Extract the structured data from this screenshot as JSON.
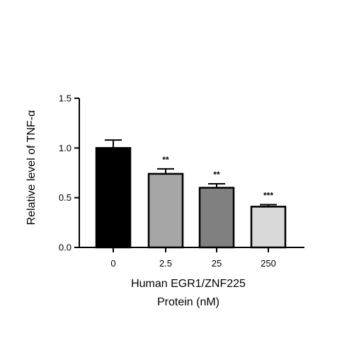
{
  "chart_data": {
    "type": "bar",
    "title": "",
    "xlabel_lines": [
      "Human EGR1/ZNF225",
      "Protein (nM)"
    ],
    "ylabel": "Relative level of TNF-α",
    "categories": [
      "0",
      "2.5",
      "25",
      "250"
    ],
    "values": [
      1.0,
      0.74,
      0.6,
      0.41
    ],
    "errors": [
      0.08,
      0.05,
      0.04,
      0.02
    ],
    "significance": [
      "",
      "**",
      "**",
      "***"
    ],
    "bar_colors": [
      "#000000",
      "#a6a6a6",
      "#808080",
      "#d9d9d9"
    ],
    "ylim": [
      0.0,
      1.5
    ],
    "yticks": [
      0.0,
      0.5,
      1.0,
      1.5
    ],
    "ytick_labels": [
      "0.0",
      "0.5",
      "1.0",
      "1.5"
    ],
    "grid": false,
    "legend": false
  }
}
